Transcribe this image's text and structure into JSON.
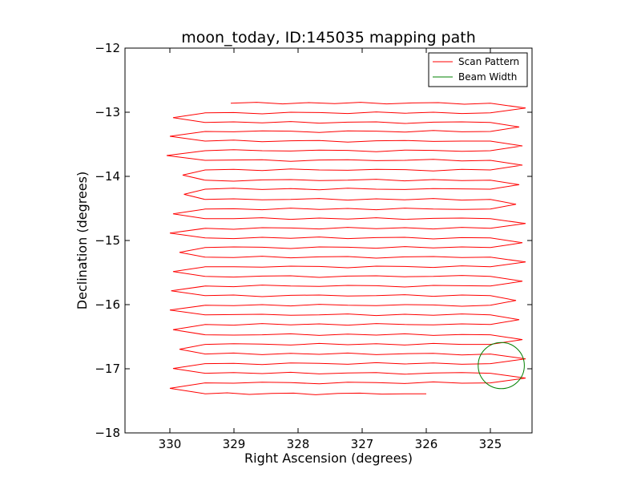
{
  "chart_data": {
    "type": "line",
    "title": "moon_today, ID:145035 mapping path",
    "xlabel": "Right Ascension (degrees)",
    "ylabel": "Declination (degrees)",
    "xlim": [
      330.7,
      324.35
    ],
    "ylim": [
      -18,
      -12
    ],
    "xticks": [
      330,
      329,
      328,
      327,
      326,
      325
    ],
    "xtick_labels": [
      "330",
      "329",
      "328",
      "327",
      "326",
      "325"
    ],
    "yticks": [
      -18,
      -17,
      -16,
      -15,
      -14,
      -13,
      -12
    ],
    "ytick_labels": [
      "−18",
      "−17",
      "−16",
      "−15",
      "−14",
      "−13",
      "−12"
    ],
    "legend_position": "top-right",
    "series": [
      {
        "name": "Scan Pattern",
        "color": "#ff0000",
        "row_decs": [
          -12.86,
          -13.01,
          -13.16,
          -13.3,
          -13.45,
          -13.6,
          -13.75,
          -13.9,
          -14.06,
          -14.2,
          -14.36,
          -14.51,
          -14.66,
          -14.81,
          -14.96,
          -15.11,
          -15.26,
          -15.41,
          -15.56,
          -15.71,
          -15.86,
          -16.01,
          -16.16,
          -16.31,
          -16.47,
          -16.62,
          -16.77,
          -16.92,
          -17.07,
          -17.22,
          -17.39
        ],
        "row_ras_start": [
          329.05,
          329.45,
          329.45,
          329.45,
          329.45,
          329.45,
          329.45,
          329.45,
          329.45,
          329.45,
          329.45,
          329.45,
          329.45,
          329.45,
          329.45,
          329.45,
          329.45,
          329.45,
          329.45,
          329.45,
          329.45,
          329.45,
          329.45,
          329.45,
          329.45,
          329.45,
          329.45,
          329.45,
          329.45,
          329.45,
          329.45
        ],
        "row_ras_end": [
          325.0,
          325.0,
          325.0,
          325.0,
          325.0,
          325.0,
          325.0,
          325.0,
          325.0,
          325.0,
          325.0,
          325.0,
          325.0,
          325.0,
          325.0,
          325.0,
          325.0,
          325.0,
          325.0,
          325.0,
          325.0,
          325.0,
          325.0,
          325.0,
          325.0,
          325.0,
          325.0,
          325.0,
          325.0,
          325.0,
          326.0
        ],
        "left_turn_ras": [
          329.95,
          330.0,
          330.05,
          329.8,
          329.78,
          329.95,
          330.0,
          329.85,
          329.95,
          329.98,
          330.0,
          329.95,
          329.85,
          329.95,
          330.0,
          330.0,
          329.75,
          330.0,
          329.95,
          329.8,
          329.95
        ],
        "right_turn_ras": [
          324.45,
          324.55,
          324.5,
          324.5,
          324.55,
          324.6,
          324.45,
          324.5,
          324.45,
          324.5,
          324.6,
          324.55,
          324.5,
          324.45,
          324.45,
          324.4,
          324.5,
          324.45,
          324.45,
          324.5,
          324.45
        ]
      },
      {
        "name": "Beam Width",
        "color": "#008000",
        "center": [
          324.83,
          -16.95
        ],
        "radius": 0.36
      }
    ]
  }
}
